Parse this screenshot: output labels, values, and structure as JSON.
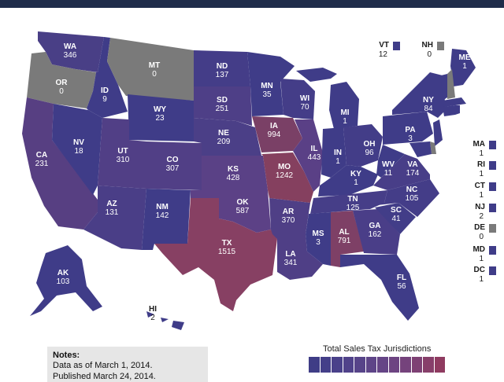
{
  "colors": {
    "header": "#1f2c4a",
    "low": "#413d85",
    "mid": "#5b4686",
    "high": "#79426c",
    "top": "#8b3a5a",
    "no_tax": "#7a7a7a"
  },
  "states": [
    {
      "abbr": "WA",
      "value": "346"
    },
    {
      "abbr": "OR",
      "value": "0"
    },
    {
      "abbr": "CA",
      "value": "231"
    },
    {
      "abbr": "NV",
      "value": "18"
    },
    {
      "abbr": "ID",
      "value": "9"
    },
    {
      "abbr": "MT",
      "value": "0"
    },
    {
      "abbr": "WY",
      "value": "23"
    },
    {
      "abbr": "UT",
      "value": "310"
    },
    {
      "abbr": "AZ",
      "value": "131"
    },
    {
      "abbr": "CO",
      "value": "307"
    },
    {
      "abbr": "NM",
      "value": "142"
    },
    {
      "abbr": "ND",
      "value": "137"
    },
    {
      "abbr": "SD",
      "value": "251"
    },
    {
      "abbr": "NE",
      "value": "209"
    },
    {
      "abbr": "KS",
      "value": "428"
    },
    {
      "abbr": "OK",
      "value": "587"
    },
    {
      "abbr": "TX",
      "value": "1515"
    },
    {
      "abbr": "MN",
      "value": "35"
    },
    {
      "abbr": "IA",
      "value": "994"
    },
    {
      "abbr": "MO",
      "value": "1242"
    },
    {
      "abbr": "AR",
      "value": "370"
    },
    {
      "abbr": "LA",
      "value": "341"
    },
    {
      "abbr": "WI",
      "value": "70"
    },
    {
      "abbr": "IL",
      "value": "443"
    },
    {
      "abbr": "MI",
      "value": "1"
    },
    {
      "abbr": "IN",
      "value": "1"
    },
    {
      "abbr": "OH",
      "value": "96"
    },
    {
      "abbr": "KY",
      "value": "1"
    },
    {
      "abbr": "TN",
      "value": "125"
    },
    {
      "abbr": "MS",
      "value": "3"
    },
    {
      "abbr": "AL",
      "value": "791"
    },
    {
      "abbr": "GA",
      "value": "162"
    },
    {
      "abbr": "FL",
      "value": "56"
    },
    {
      "abbr": "SC",
      "value": "41"
    },
    {
      "abbr": "NC",
      "value": "105"
    },
    {
      "abbr": "VA",
      "value": "174"
    },
    {
      "abbr": "WV",
      "value": "11"
    },
    {
      "abbr": "PA",
      "value": "3"
    },
    {
      "abbr": "NY",
      "value": "84"
    },
    {
      "abbr": "ME",
      "value": "1"
    },
    {
      "abbr": "AK",
      "value": "103"
    },
    {
      "abbr": "HI",
      "value": "2"
    }
  ],
  "corner_states": [
    {
      "abbr": "VT",
      "value": "12"
    },
    {
      "abbr": "NH",
      "value": "0"
    }
  ],
  "side_states": [
    {
      "abbr": "MA",
      "value": "1"
    },
    {
      "abbr": "RI",
      "value": "1"
    },
    {
      "abbr": "CT",
      "value": "1"
    },
    {
      "abbr": "NJ",
      "value": "2"
    },
    {
      "abbr": "DE",
      "value": "0"
    },
    {
      "abbr": "MD",
      "value": "1"
    },
    {
      "abbr": "DC",
      "value": "1"
    }
  ],
  "notes": {
    "title": "Notes:",
    "line1": "Data as of March 1, 2014.",
    "line2": "Published March 24, 2014."
  },
  "legend": {
    "title": "Total Sales Tax Jurisdictions",
    "colors": [
      "#3f3d86",
      "#443f89",
      "#4a418a",
      "#50428a",
      "#574489",
      "#5e4588",
      "#654586",
      "#6d4482",
      "#75437c",
      "#7e4174",
      "#873f6a",
      "#8f3b60"
    ]
  }
}
